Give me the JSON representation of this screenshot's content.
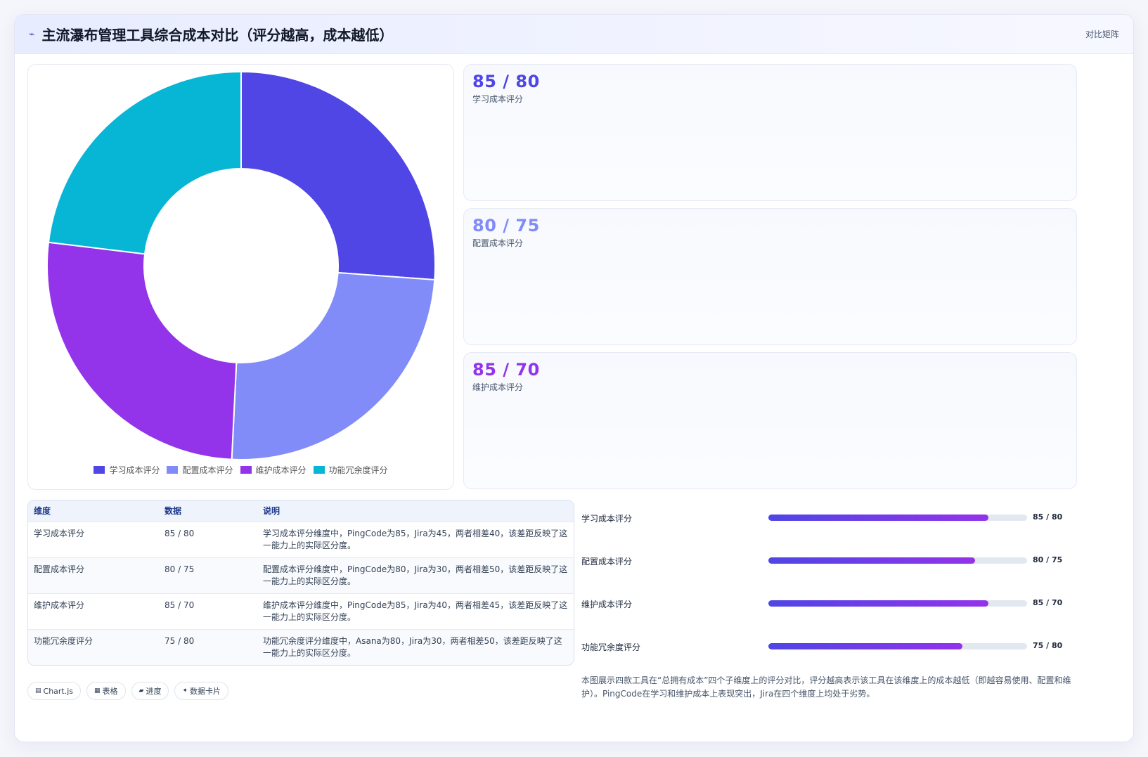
{
  "header": {
    "icon": "⌁",
    "title": "主流瀑布管理工具综合成本对比（评分越高，成本越低）",
    "right_label": "对比矩阵"
  },
  "chart_data": {
    "type": "pie",
    "variant": "doughnut",
    "categories": [
      "学习成本评分",
      "配置成本评分",
      "维护成本评分",
      "功能冗余度评分"
    ],
    "values": [
      85,
      80,
      85,
      75
    ],
    "colors": [
      "#4f46e5",
      "#818cf8",
      "#9333ea",
      "#06b6d4"
    ],
    "legend_position": "bottom"
  },
  "stats": [
    {
      "value": "85 / 80",
      "label": "学习成本评分",
      "color": "#4f46e5"
    },
    {
      "value": "80 / 75",
      "label": "配置成本评分",
      "color": "#818cf8"
    },
    {
      "value": "85 / 70",
      "label": "维护成本评分",
      "color": "#9333ea"
    }
  ],
  "table": {
    "headers": [
      "维度",
      "数据",
      "说明"
    ],
    "rows": [
      [
        "学习成本评分",
        "85 / 80",
        "学习成本评分维度中，PingCode为85，Jira为45，两者相差40，该差距反映了这一能力上的实际区分度。"
      ],
      [
        "配置成本评分",
        "80 / 75",
        "配置成本评分维度中，PingCode为80，Jira为30，两者相差50，该差距反映了这一能力上的实际区分度。"
      ],
      [
        "维护成本评分",
        "85 / 70",
        "维护成本评分维度中，PingCode为85，Jira为40，两者相差45，该差距反映了这一能力上的实际区分度。"
      ],
      [
        "功能冗余度评分",
        "75 / 80",
        "功能冗余度评分维度中，Asana为80，Jira为30，两者相差50，该差距反映了这一能力上的实际区分度。"
      ]
    ]
  },
  "progress": [
    {
      "label": "学习成本评分",
      "value_text": "85 / 80",
      "fraction": 0.85
    },
    {
      "label": "配置成本评分",
      "value_text": "80 / 75",
      "fraction": 0.8
    },
    {
      "label": "维护成本评分",
      "value_text": "85 / 70",
      "fraction": 0.85
    },
    {
      "label": "功能冗余度评分",
      "value_text": "75 / 80",
      "fraction": 0.75
    }
  ],
  "tags": [
    {
      "icon": "▤",
      "label": "Chart.js"
    },
    {
      "icon": "▦",
      "label": "表格"
    },
    {
      "icon": "▰",
      "label": "进度"
    },
    {
      "icon": "✦",
      "label": "数据卡片"
    }
  ],
  "note": "本图展示四款工具在“总拥有成本”四个子维度上的评分对比，评分越高表示该工具在该维度上的成本越低（即越容易使用、配置和维护）。PingCode在学习和维护成本上表现突出，Jira在四个维度上均处于劣势。"
}
